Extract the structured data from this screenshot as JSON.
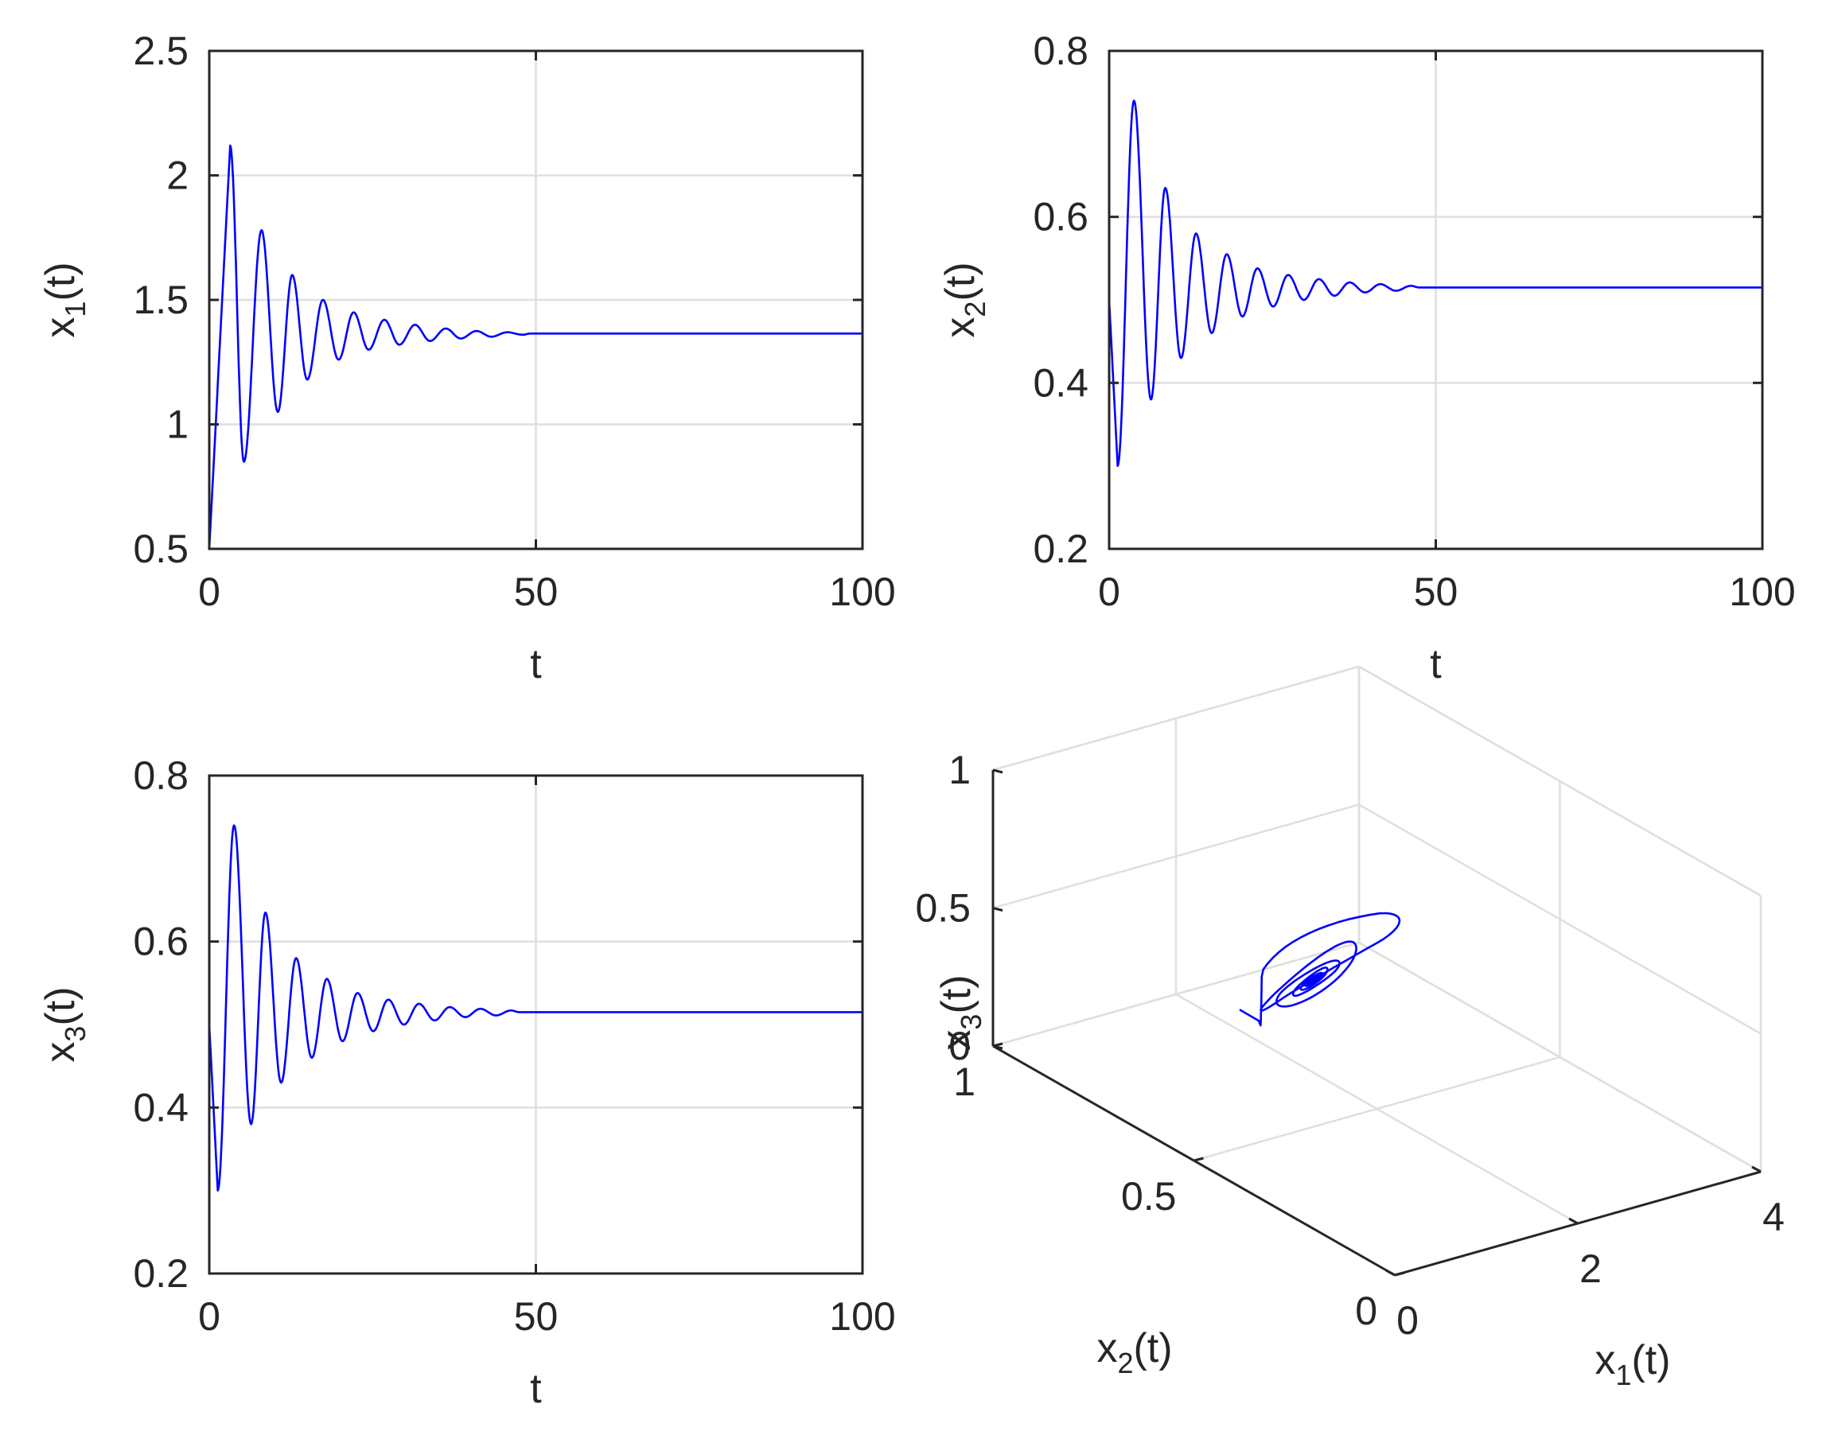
{
  "colors": {
    "line": "#0000ff",
    "axis": "#262626",
    "grid": "#dfdfdf",
    "background": "#ffffff"
  },
  "chart_data": [
    {
      "type": "line",
      "xlabel": "t",
      "ylabel": "x1(t)",
      "xlim": [
        0,
        100
      ],
      "ylim": [
        0.5,
        2.5
      ],
      "xticks": [
        "0",
        "50",
        "100"
      ],
      "yticks": [
        "0.5",
        "1",
        "1.5",
        "2",
        "2.5"
      ],
      "grid": true,
      "series": [
        {
          "start": 0.5,
          "equilibrium": 1.365,
          "extrema_t": [
            3.2,
            5.3,
            8.0,
            10.5,
            12.7,
            15.0,
            17.4,
            19.8,
            22.1,
            24.4,
            26.8,
            29.1,
            31.5,
            33.8,
            36.2,
            38.5,
            40.9,
            43.2,
            45.6,
            48.0
          ],
          "extrema_v": [
            2.12,
            0.85,
            1.78,
            1.05,
            1.6,
            1.18,
            1.5,
            1.26,
            1.45,
            1.3,
            1.42,
            1.32,
            1.4,
            1.335,
            1.385,
            1.345,
            1.375,
            1.352,
            1.37,
            1.36
          ]
        }
      ]
    },
    {
      "type": "line",
      "xlabel": "t",
      "ylabel": "x2(t)",
      "xlim": [
        0,
        100
      ],
      "ylim": [
        0.2,
        0.8
      ],
      "xticks": [
        "0",
        "50",
        "100"
      ],
      "yticks": [
        "0.2",
        "0.4",
        "0.6",
        "0.8"
      ],
      "grid": true,
      "series": [
        {
          "start": 0.5,
          "equilibrium": 0.515,
          "extrema_t": [
            1.3,
            3.8,
            6.4,
            8.6,
            11.0,
            13.3,
            15.7,
            18.0,
            20.4,
            22.7,
            25.1,
            27.4,
            29.8,
            32.1,
            34.5,
            36.8,
            39.2,
            41.5,
            43.9,
            46.2
          ],
          "extrema_v": [
            0.3,
            0.74,
            0.38,
            0.635,
            0.43,
            0.58,
            0.46,
            0.555,
            0.48,
            0.538,
            0.492,
            0.53,
            0.5,
            0.525,
            0.505,
            0.521,
            0.509,
            0.519,
            0.511,
            0.517
          ]
        }
      ]
    },
    {
      "type": "line",
      "xlabel": "t",
      "ylabel": "x3(t)",
      "xlim": [
        0,
        100
      ],
      "ylim": [
        0.2,
        0.8
      ],
      "xticks": [
        "0",
        "50",
        "100"
      ],
      "yticks": [
        "0.2",
        "0.4",
        "0.6",
        "0.8"
      ],
      "grid": true,
      "series": [
        {
          "start": 0.5,
          "equilibrium": 0.515,
          "extrema_t": [
            1.3,
            3.8,
            6.4,
            8.6,
            11.0,
            13.3,
            15.7,
            18.0,
            20.4,
            22.7,
            25.1,
            27.4,
            29.8,
            32.1,
            34.5,
            36.8,
            39.2,
            41.5,
            43.9,
            46.2
          ],
          "extrema_v": [
            0.3,
            0.74,
            0.38,
            0.635,
            0.43,
            0.58,
            0.46,
            0.555,
            0.48,
            0.538,
            0.492,
            0.53,
            0.5,
            0.525,
            0.505,
            0.521,
            0.509,
            0.519,
            0.511,
            0.517
          ]
        }
      ]
    },
    {
      "type": "line3d",
      "xlabel": "x1(t)",
      "ylabel": "x2(t)",
      "zlabel": "x3(t)",
      "xlim": [
        0,
        4
      ],
      "ylim": [
        0,
        1
      ],
      "zlim": [
        0,
        1
      ],
      "xticks": [
        "0",
        "2",
        "4"
      ],
      "yticks": [
        "0",
        "0.5",
        "1"
      ],
      "zticks": [
        "0",
        "0.5",
        "1"
      ],
      "grid": true,
      "series": [
        {
          "start": [
            0.5,
            0.5,
            0.5
          ],
          "equilibrium": [
            1.365,
            0.515,
            0.515
          ]
        }
      ]
    }
  ]
}
